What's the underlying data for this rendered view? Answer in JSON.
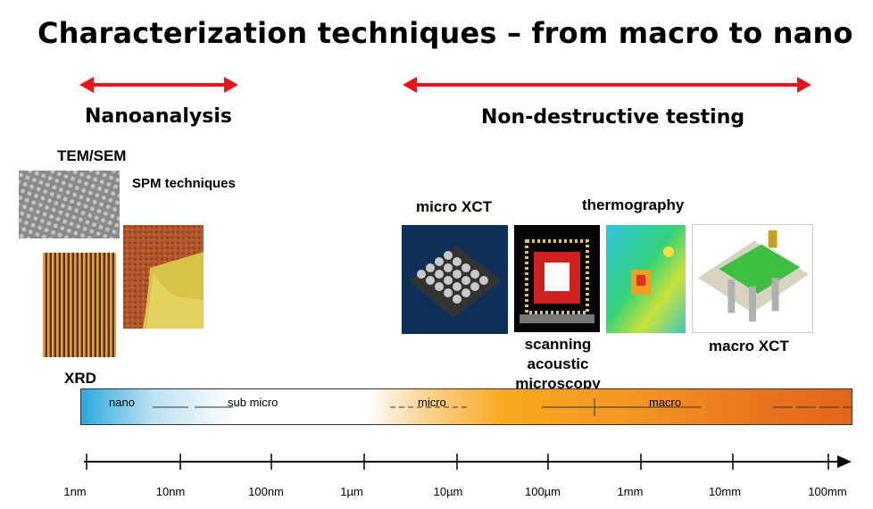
{
  "title": "Characterization techniques – from macro to nano",
  "left_group": {
    "heading": "Nanoanalysis"
  },
  "right_group": {
    "heading": "Non-destructive testing"
  },
  "techniques": {
    "tem_sem": "TEM/SEM",
    "spm": "SPM techniques",
    "xrd": "XRD",
    "micro_xct": "micro XCT",
    "thermography": "thermography",
    "scanning_acoustic": "scanning acoustic microscopy",
    "macro_xct": "macro XCT"
  },
  "scale_bands": {
    "nano": "nano",
    "sub_micro": "sub micro",
    "micro": "micro",
    "macro": "macro"
  },
  "axis": {
    "ticks": [
      "1nm",
      "10nm",
      "100nm",
      "1µm",
      "10µm",
      "100µm",
      "1mm",
      "10mm",
      "100mm"
    ]
  },
  "colors": {
    "arrow": "#e8141b",
    "nano": "#2aa8dc",
    "macro": "#e2661a"
  }
}
